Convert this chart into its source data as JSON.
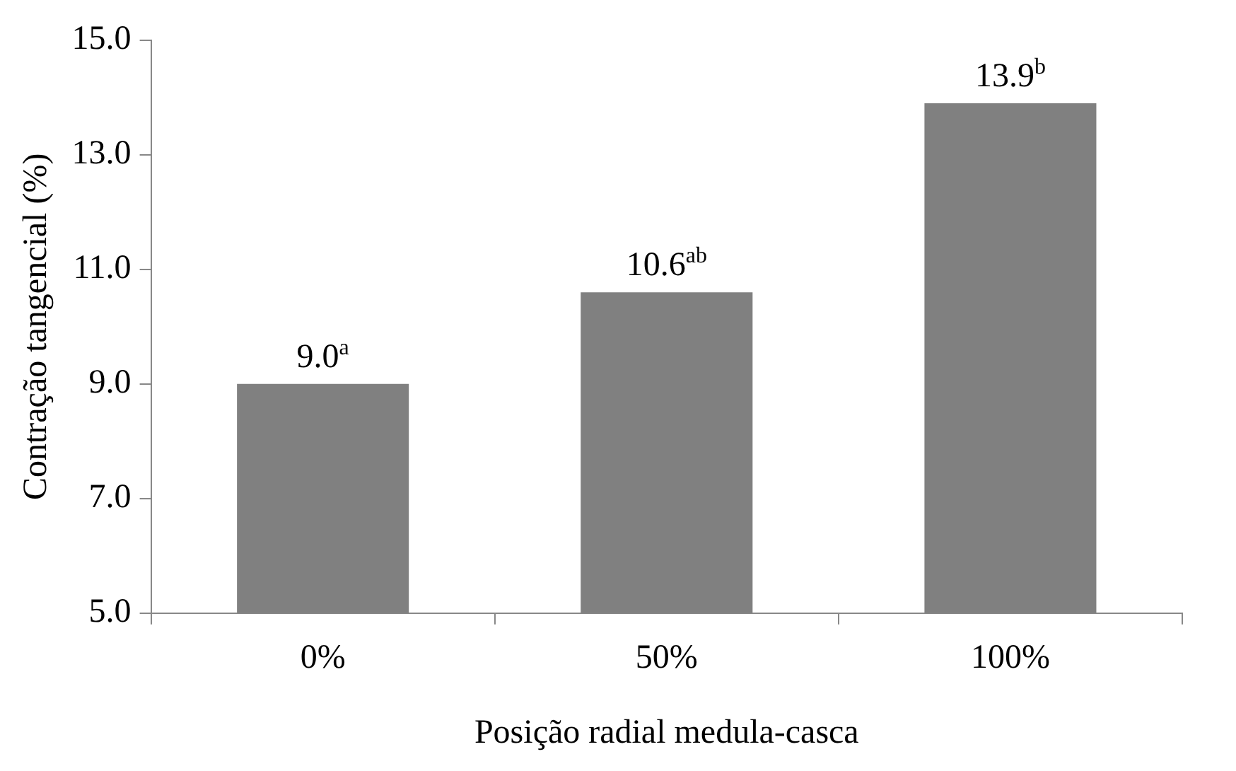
{
  "chart_data": {
    "type": "bar",
    "xlabel": "Posição radial medula-casca",
    "ylabel": "Contração tangencial (%)",
    "categories": [
      "0%",
      "50%",
      "100%"
    ],
    "values": [
      9.0,
      10.6,
      13.9
    ],
    "value_labels": [
      "9.0$^{a}$",
      "10.6$^{ab}$",
      "13.9$^{b}$"
    ],
    "color": "#808080",
    "ylim": [
      5,
      15
    ],
    "yticks": [
      {
        "value": 5,
        "label": "5.0"
      },
      {
        "value": 7,
        "label": "7.0"
      },
      {
        "value": 9,
        "label": "9.0"
      },
      {
        "value": 11,
        "label": "11.0"
      },
      {
        "value": 13,
        "label": "13.0"
      },
      {
        "value": 15,
        "label": "15.0"
      }
    ],
    "grid": false,
    "legend": false
  }
}
